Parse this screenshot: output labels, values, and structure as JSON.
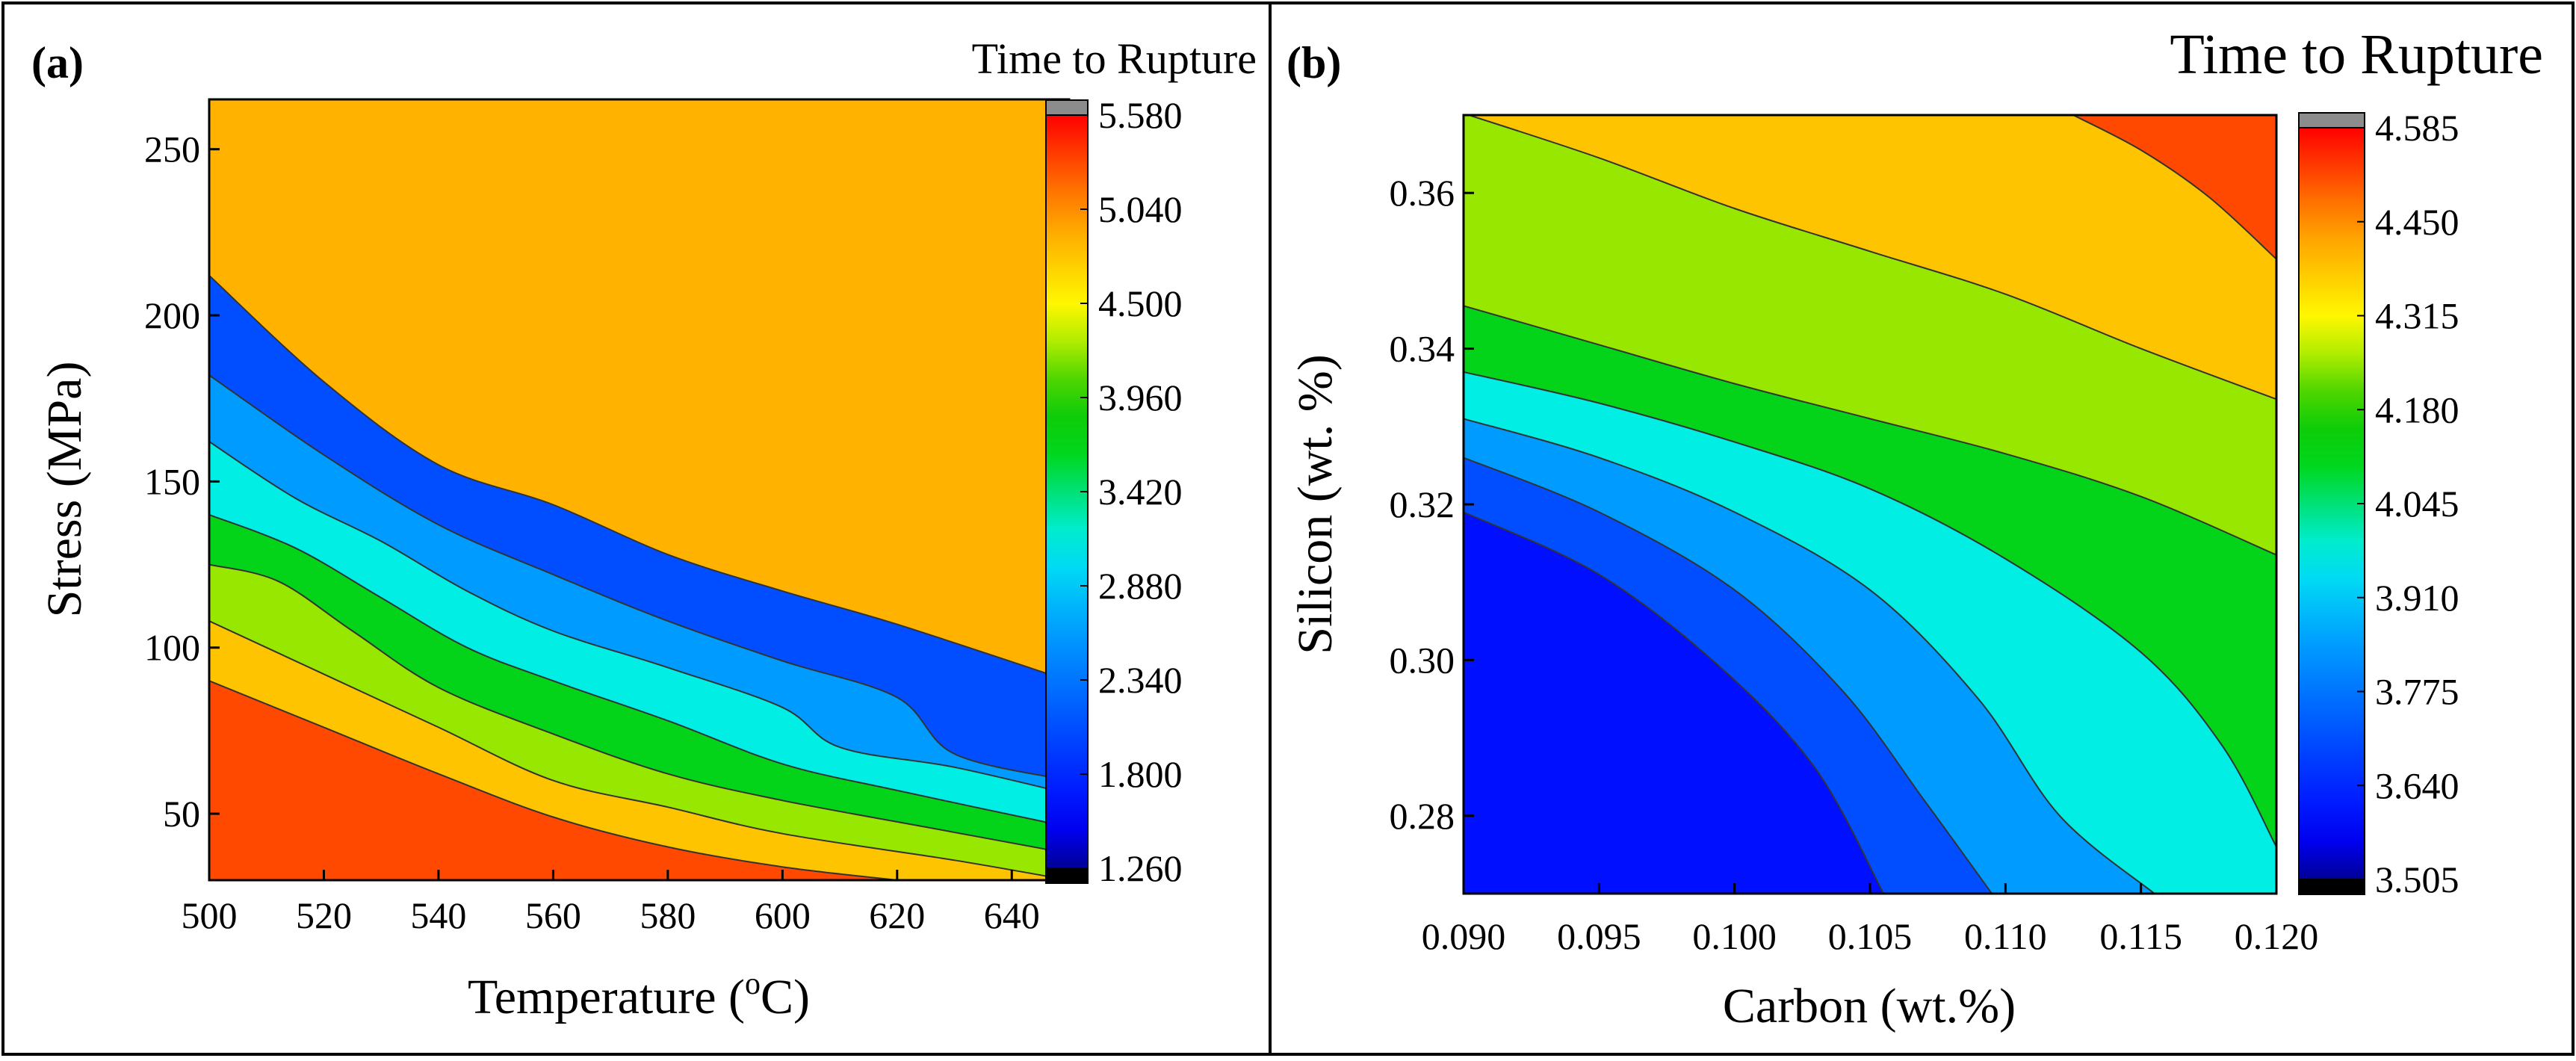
{
  "chart_data": [
    {
      "type": "heatmap",
      "panel_label": "(a)",
      "title": "",
      "legend_title": "Time to Rupture",
      "xlabel": "Temperature",
      "xlabel_unit_prefix": "(",
      "xlabel_unit_sup": "o",
      "xlabel_unit_suffix": "C)",
      "ylabel": "Stress (MPa)",
      "xlim": [
        500,
        650
      ],
      "ylim": [
        30,
        265
      ],
      "xticks": [
        "500",
        "520",
        "540",
        "560",
        "580",
        "600",
        "620",
        "640"
      ],
      "xtick_values": [
        500,
        520,
        540,
        560,
        580,
        600,
        620,
        640
      ],
      "yticks": [
        "50",
        "100",
        "150",
        "200",
        "250"
      ],
      "ytick_values": [
        50,
        100,
        150,
        200,
        250
      ],
      "colorbar_ticks": [
        "1.260",
        "1.800",
        "2.340",
        "2.880",
        "3.420",
        "3.960",
        "4.500",
        "5.040",
        "5.580"
      ],
      "colorbar_values": [
        1.26,
        1.8,
        2.34,
        2.88,
        3.42,
        3.96,
        4.5,
        5.04,
        5.58
      ],
      "colorbar_range": [
        1.26,
        5.58
      ],
      "contour_levels": [
        {
          "value": 1.8,
          "points": [
            [
              500,
              212
            ],
            [
              520,
              180
            ],
            [
              540,
              155
            ],
            [
              560,
              143
            ],
            [
              580,
              128
            ],
            [
              600,
              117
            ],
            [
              620,
              107
            ],
            [
              650,
              90
            ]
          ]
        },
        {
          "value": 2.34,
          "points": [
            [
              500,
              182
            ],
            [
              520,
              158
            ],
            [
              540,
              137
            ],
            [
              560,
              122
            ],
            [
              580,
              108
            ],
            [
              600,
              96
            ],
            [
              620,
              85
            ],
            [
              630,
              68
            ],
            [
              650,
              60
            ]
          ]
        },
        {
          "value": 2.88,
          "points": [
            [
              500,
              162
            ],
            [
              515,
              145
            ],
            [
              530,
              132
            ],
            [
              545,
              117
            ],
            [
              560,
              105
            ],
            [
              580,
              94
            ],
            [
              600,
              82
            ],
            [
              610,
              70
            ],
            [
              630,
              64
            ],
            [
              650,
              56
            ]
          ]
        },
        {
          "value": 3.42,
          "points": [
            [
              500,
              140
            ],
            [
              515,
              130
            ],
            [
              530,
              115
            ],
            [
              545,
              100
            ],
            [
              560,
              90
            ],
            [
              580,
              78
            ],
            [
              600,
              65
            ],
            [
              620,
              57
            ],
            [
              650,
              46
            ]
          ]
        },
        {
          "value": 3.96,
          "points": [
            [
              500,
              125
            ],
            [
              512,
              120
            ],
            [
              525,
              105
            ],
            [
              540,
              88
            ],
            [
              560,
              74
            ],
            [
              580,
              62
            ],
            [
              600,
              54
            ],
            [
              625,
              46
            ],
            [
              650,
              38
            ]
          ]
        },
        {
          "value": 4.5,
          "points": [
            [
              500,
              108
            ],
            [
              520,
              92
            ],
            [
              540,
              76
            ],
            [
              560,
              60
            ],
            [
              580,
              52
            ],
            [
              600,
              44
            ],
            [
              630,
              36
            ],
            [
              650,
              30
            ]
          ]
        },
        {
          "value": 5.04,
          "points": [
            [
              500,
              90
            ],
            [
              520,
              76
            ],
            [
              540,
              62
            ],
            [
              560,
              49
            ],
            [
              580,
              40
            ],
            [
              600,
              34
            ],
            [
              620,
              30
            ]
          ]
        }
      ],
      "field": {
        "rows_y": [
          30,
          40,
          50,
          60,
          70,
          80,
          90,
          100,
          110,
          120,
          130,
          140,
          150,
          160,
          170,
          180,
          190,
          200,
          210,
          220,
          230,
          240,
          250,
          265
        ],
        "cols_x": [
          500,
          510,
          520,
          530,
          540,
          550,
          560,
          570,
          580,
          590,
          600,
          610,
          620,
          630,
          640,
          650
        ]
      }
    },
    {
      "type": "heatmap",
      "panel_label": "(b)",
      "title": "",
      "legend_title": "Time to Rupture",
      "xlabel": "Carbon (wt.%)",
      "ylabel": "Silicon (wt. %)",
      "xlim": [
        0.09,
        0.12
      ],
      "ylim": [
        0.27,
        0.37
      ],
      "xticks": [
        "0.090",
        "0.095",
        "0.100",
        "0.105",
        "0.110",
        "0.115",
        "0.120"
      ],
      "xtick_values": [
        0.09,
        0.095,
        0.1,
        0.105,
        0.11,
        0.115,
        0.12
      ],
      "yticks": [
        "0.28",
        "0.30",
        "0.32",
        "0.34",
        "0.36"
      ],
      "ytick_values": [
        0.28,
        0.3,
        0.32,
        0.34,
        0.36
      ],
      "colorbar_ticks": [
        "3.505",
        "3.640",
        "3.775",
        "3.910",
        "4.045",
        "4.180",
        "4.315",
        "4.450",
        "4.585"
      ],
      "colorbar_values": [
        3.505,
        3.64,
        3.775,
        3.91,
        4.045,
        4.18,
        4.315,
        4.45,
        4.585
      ],
      "colorbar_range": [
        3.505,
        4.585
      ],
      "contour_levels": [
        {
          "value": 4.45,
          "points": [
            [
              0.1125,
              0.37
            ],
            [
              0.115,
              0.3655
            ],
            [
              0.1175,
              0.3595
            ],
            [
              0.12,
              0.3515
            ]
          ]
        },
        {
          "value": 4.315,
          "points": [
            [
              0.0902,
              0.37
            ],
            [
              0.095,
              0.3645
            ],
            [
              0.1,
              0.358
            ],
            [
              0.105,
              0.3525
            ],
            [
              0.11,
              0.347
            ],
            [
              0.115,
              0.34
            ],
            [
              0.12,
              0.3335
            ]
          ]
        },
        {
          "value": 4.18,
          "points": [
            [
              0.09,
              0.3455
            ],
            [
              0.095,
              0.3405
            ],
            [
              0.1,
              0.3355
            ],
            [
              0.105,
              0.331
            ],
            [
              0.11,
              0.3265
            ],
            [
              0.115,
              0.321
            ],
            [
              0.12,
              0.3135
            ]
          ]
        },
        {
          "value": 4.045,
          "points": [
            [
              0.09,
              0.337
            ],
            [
              0.095,
              0.333
            ],
            [
              0.1,
              0.328
            ],
            [
              0.105,
              0.322
            ],
            [
              0.11,
              0.313
            ],
            [
              0.115,
              0.301
            ],
            [
              0.118,
              0.289
            ],
            [
              0.12,
              0.276
            ]
          ]
        },
        {
          "value": 3.91,
          "points": [
            [
              0.09,
              0.331
            ],
            [
              0.095,
              0.326
            ],
            [
              0.1,
              0.319
            ],
            [
              0.105,
              0.309
            ],
            [
              0.109,
              0.295
            ],
            [
              0.112,
              0.28
            ],
            [
              0.1155,
              0.27
            ]
          ]
        },
        {
          "value": 3.775,
          "points": [
            [
              0.09,
              0.326
            ],
            [
              0.095,
              0.319
            ],
            [
              0.1,
              0.309
            ],
            [
              0.104,
              0.296
            ],
            [
              0.107,
              0.282
            ],
            [
              0.1095,
              0.27
            ]
          ]
        },
        {
          "value": 3.64,
          "points": [
            [
              0.09,
              0.319
            ],
            [
              0.095,
              0.311
            ],
            [
              0.0995,
              0.299
            ],
            [
              0.103,
              0.286
            ],
            [
              0.1055,
              0.27
            ]
          ]
        }
      ]
    }
  ]
}
